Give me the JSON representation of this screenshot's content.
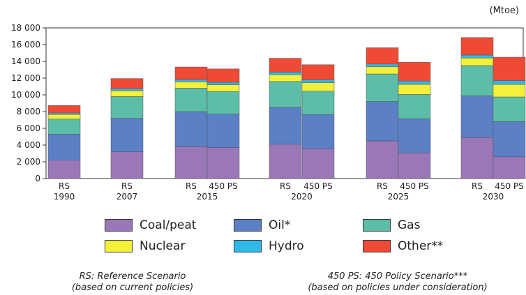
{
  "chart_data": {
    "type": "bar",
    "stacked": true,
    "unit": "(Mtoe)",
    "ylim": [
      0,
      18000
    ],
    "yticks": [
      "0",
      "2 000",
      "4 000",
      "6 000",
      "8 000",
      "10 000",
      "12 000",
      "14 000",
      "16 000",
      "18 000"
    ],
    "grid": false,
    "groups": [
      {
        "year": "1990",
        "bars": [
          {
            "label": "RS",
            "values": [
              2200,
              3100,
              1800,
              550,
              180,
              900
            ]
          }
        ]
      },
      {
        "year": "2007",
        "bars": [
          {
            "label": "RS",
            "values": [
              3200,
              4000,
              2600,
              700,
              250,
              1200
            ]
          }
        ]
      },
      {
        "year": "2015",
        "bars": [
          {
            "label": "RS",
            "values": [
              3800,
              4200,
              2800,
              750,
              280,
              1500
            ]
          },
          {
            "label": "450 PS",
            "values": [
              3700,
              4000,
              2700,
              800,
              300,
              1600
            ]
          }
        ]
      },
      {
        "year": "2020",
        "bars": [
          {
            "label": "RS",
            "values": [
              4100,
              4400,
              3100,
              800,
              320,
              1650
            ]
          },
          {
            "label": "450 PS",
            "values": [
              3550,
              4100,
              2800,
              1000,
              350,
              1800
            ]
          }
        ]
      },
      {
        "year": "2025",
        "bars": [
          {
            "label": "RS",
            "values": [
              4500,
              4700,
              3300,
              850,
              330,
              1950
            ]
          },
          {
            "label": "450 PS",
            "values": [
              3050,
              4100,
              2900,
              1200,
              400,
              2250
            ]
          }
        ]
      },
      {
        "year": "2030",
        "bars": [
          {
            "label": "RS",
            "values": [
              4900,
              5000,
              3600,
              900,
              350,
              2100
            ]
          },
          {
            "label": "450 PS",
            "values": [
              2600,
              4200,
              2950,
              1500,
              450,
              2800
            ]
          }
        ]
      }
    ],
    "series": [
      {
        "name": "Coal/peat",
        "color": "#9a78b8"
      },
      {
        "name": "Oil*",
        "color": "#5b80c6"
      },
      {
        "name": "Gas",
        "color": "#5cbea8"
      },
      {
        "name": "Nuclear",
        "color": "#f5f03a"
      },
      {
        "name": "Hydro",
        "color": "#2fb9e8"
      },
      {
        "name": "Other**",
        "color": "#ee4a35"
      }
    ]
  },
  "notes": {
    "rs": [
      "RS: Reference Scenario",
      "(based on current policies)"
    ],
    "ps": [
      "450 PS: 450 Policy Scenario***",
      "(based on policies under consideration)"
    ]
  }
}
